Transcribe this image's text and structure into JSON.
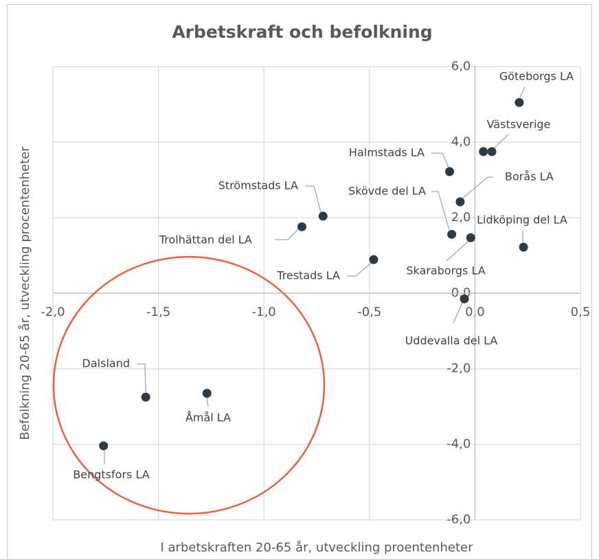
{
  "chart_data": {
    "type": "scatter",
    "title": "Arbetskraft och befolkning",
    "x_label": "I arbetskraften 20-65 år, utveckling proentenheter",
    "y_label": "Befolkning 20-65 år, utveckling procentenheter",
    "labels": [
      "Göteborgs LA",
      null,
      "Västsverige",
      "Halmstads LA",
      "Borås LA",
      "Strömstads LA",
      "Trolhättan del LA",
      "Skövde del LA",
      "Skaraborgs LA",
      "Lidköping del LA",
      "Trestads LA",
      "Uddevalla del LA",
      "Dalsland",
      "Åmål LA",
      "Bengtsfors LA"
    ],
    "x": [
      0.21,
      0.04,
      0.08,
      -0.12,
      -0.07,
      -0.72,
      -0.82,
      -0.11,
      -0.02,
      0.23,
      -0.48,
      -0.05,
      -1.56,
      -1.27,
      -1.76
    ],
    "y": [
      5.05,
      3.75,
      3.75,
      3.22,
      2.42,
      2.04,
      1.76,
      1.56,
      1.47,
      1.22,
      0.89,
      -0.15,
      -2.75,
      -2.65,
      -4.04
    ],
    "color": "#2e3a44",
    "xlim": [
      -2,
      0.5
    ],
    "xticks": [
      {
        "value": -2,
        "label": "-2,0"
      },
      {
        "value": -1.5,
        "label": "-1,5"
      },
      {
        "value": -1,
        "label": "-1,0"
      },
      {
        "value": -0.5,
        "label": "-0,5"
      },
      {
        "value": 0,
        "label": "0,0"
      },
      {
        "value": 0.5,
        "label": "0,5"
      }
    ],
    "ylim": [
      -6,
      6
    ],
    "yticks": [
      {
        "value": -6,
        "label": "-6,0"
      },
      {
        "value": -4,
        "label": "-4,0"
      },
      {
        "value": -2,
        "label": "-2,0"
      },
      {
        "value": 0,
        "label": "0,0"
      },
      {
        "value": 2,
        "label": "2,0"
      },
      {
        "value": 4,
        "label": "4,0"
      },
      {
        "value": 6,
        "label": "6,0"
      }
    ],
    "grid": true
  }
}
